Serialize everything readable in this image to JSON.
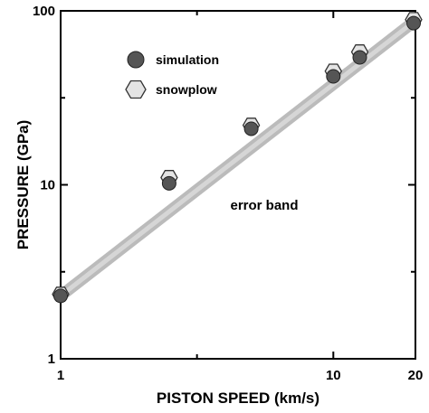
{
  "chart_data": {
    "type": "scatter",
    "title": "",
    "xlabel": "PISTON SPEED (km/s)",
    "ylabel": "PRESSURE (GPa)",
    "xscale": "log",
    "yscale": "log",
    "xlim": [
      1,
      20
    ],
    "ylim": [
      1,
      100
    ],
    "x_ticks": [
      {
        "value": 1,
        "label": "1"
      },
      {
        "value": 10,
        "label": "10"
      },
      {
        "value": 20,
        "label": "20"
      }
    ],
    "y_ticks": [
      {
        "value": 1,
        "label": "1"
      },
      {
        "value": 10,
        "label": "10"
      },
      {
        "value": 100,
        "label": "100"
      }
    ],
    "grid": false,
    "legend_position": "top-left",
    "series": [
      {
        "name": "simulation",
        "marker": "circle",
        "color": "#555555",
        "points": [
          {
            "x": 1.0,
            "y": 2.3
          },
          {
            "x": 2.5,
            "y": 10.2
          },
          {
            "x": 5.0,
            "y": 21.0
          },
          {
            "x": 10.0,
            "y": 42.0
          },
          {
            "x": 12.5,
            "y": 54.0
          },
          {
            "x": 19.7,
            "y": 85.0
          }
        ]
      },
      {
        "name": "snowplow",
        "marker": "hexagon",
        "color": "#e4e4e4",
        "points": [
          {
            "x": 1.0,
            "y": 2.35
          },
          {
            "x": 2.5,
            "y": 11.0
          },
          {
            "x": 5.0,
            "y": 22.0
          },
          {
            "x": 10.0,
            "y": 45.0
          },
          {
            "x": 12.5,
            "y": 58.0
          },
          {
            "x": 19.7,
            "y": 89.0
          }
        ]
      }
    ],
    "error_band": {
      "label": "error band",
      "color": "#bbbbbb",
      "from": {
        "x": 1.0,
        "y": 2.3
      },
      "to": {
        "x": 20.0,
        "y": 88.0
      }
    }
  }
}
